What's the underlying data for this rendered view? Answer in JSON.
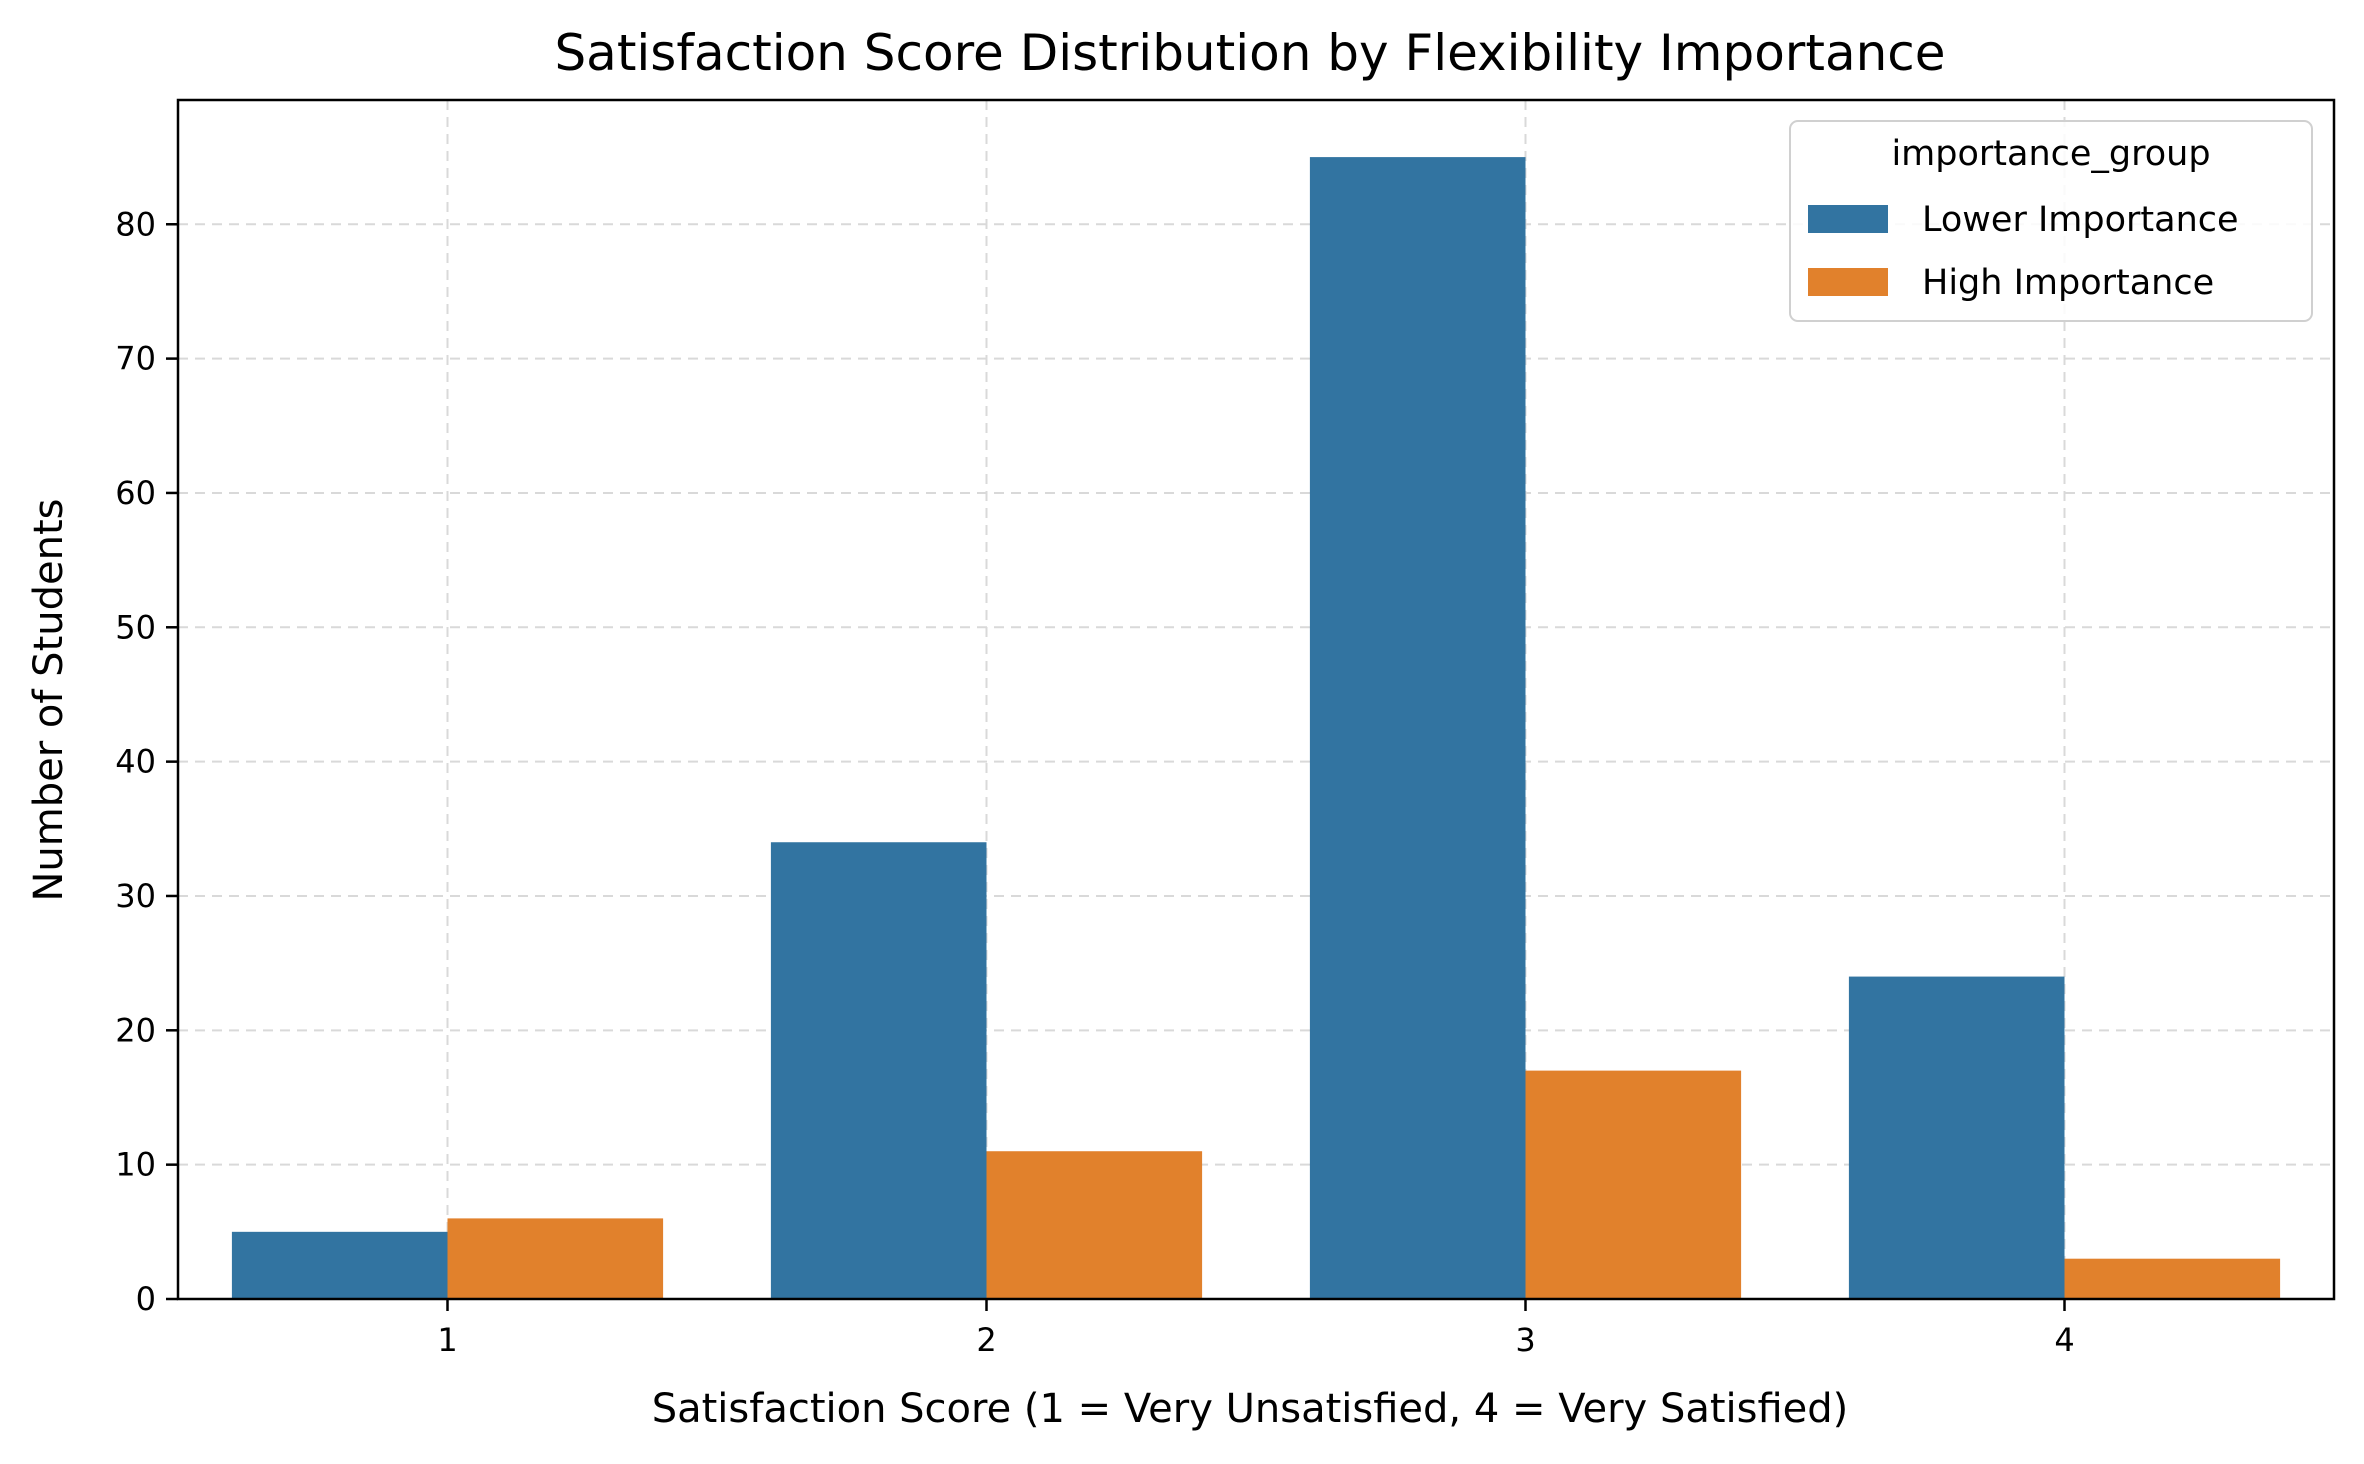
{
  "chart_data": {
    "type": "bar",
    "title": "Satisfaction Score Distribution by Flexibility Importance",
    "xlabel": "Satisfaction Score (1 = Very Unsatisfied, 4 = Very Satisfied)",
    "ylabel": "Number of Students",
    "categories": [
      "1",
      "2",
      "3",
      "4"
    ],
    "series": [
      {
        "name": "Lower Importance",
        "color": "#3274a1",
        "values": [
          5,
          34,
          85,
          24
        ]
      },
      {
        "name": "High Importance",
        "color": "#e1812c",
        "values": [
          6,
          11,
          17,
          3
        ]
      }
    ],
    "ylim": [
      0,
      89.25
    ],
    "yticks": [
      0,
      10,
      20,
      30,
      40,
      50,
      60,
      70,
      80
    ],
    "grid": true,
    "legend": {
      "title": "importance_group",
      "position": "top-right"
    }
  }
}
